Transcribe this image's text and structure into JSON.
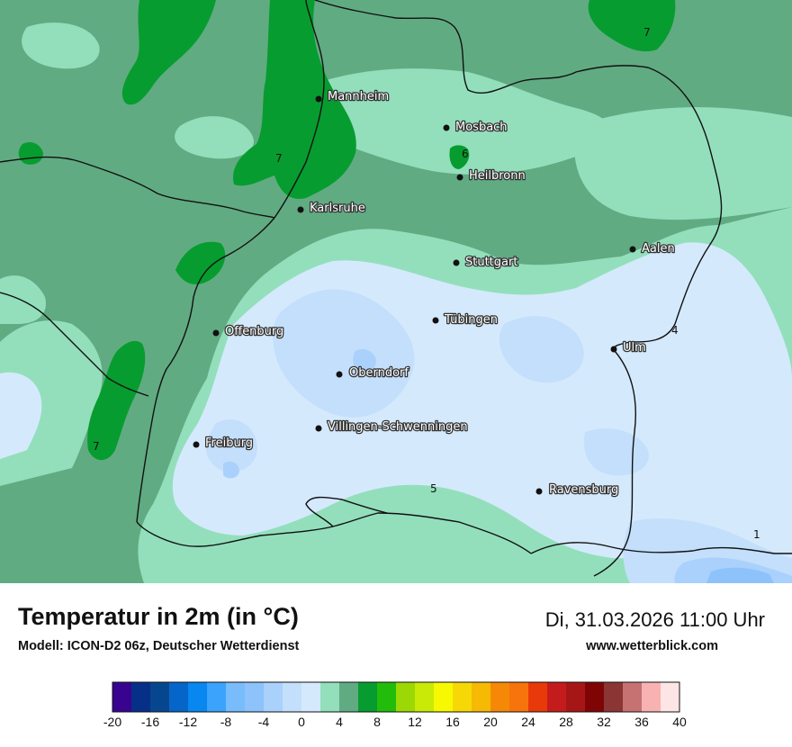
{
  "map": {
    "base_color": "#61ab82",
    "colors": {
      "t0": "#d5e9fd",
      "t1": "#c3dffb",
      "t2": "#a9d1fb",
      "t3": "#8ec2fb",
      "t4": "#93dfbc",
      "t5": "#61ab82",
      "t6": "#079c2f"
    },
    "cities": [
      {
        "id": "mannheim",
        "name": "Mannheim"
      },
      {
        "id": "mosbach",
        "name": "Mosbach"
      },
      {
        "id": "heilbronn",
        "name": "Heilbronn"
      },
      {
        "id": "karlsruhe",
        "name": "Karlsruhe"
      },
      {
        "id": "stuttgart",
        "name": "Stuttgart"
      },
      {
        "id": "aalen",
        "name": "Aalen"
      },
      {
        "id": "tuebingen",
        "name": "Tübingen"
      },
      {
        "id": "offenburg",
        "name": "Offenburg"
      },
      {
        "id": "ulm",
        "name": "Ulm"
      },
      {
        "id": "oberndorf",
        "name": "Oberndorf"
      },
      {
        "id": "villingen",
        "name": "Villingen-Schwenningen"
      },
      {
        "id": "freiburg",
        "name": "Freiburg"
      },
      {
        "id": "ravensburg",
        "name": "Ravensburg"
      }
    ],
    "contour_labels": [
      "7",
      "6",
      "7",
      "4",
      "7",
      "5",
      "1"
    ]
  },
  "footer": {
    "title": "Temperatur in 2m (in °C)",
    "subtitle": "Modell: ICON-D2 06z, Deutscher Wetterdienst",
    "datetime": "Di, 31.03.2026 11:00 Uhr",
    "site": "www.wetterblick.com"
  },
  "legend": {
    "min": -20,
    "max": 40,
    "step": 2,
    "ticks": [
      -20,
      -16,
      -12,
      -8,
      -4,
      0,
      4,
      8,
      12,
      16,
      20,
      24,
      28,
      32,
      36,
      40
    ],
    "colors": [
      "#38048f",
      "#062f87",
      "#06468f",
      "#0565c8",
      "#0787ef",
      "#3ba3fb",
      "#79bcfb",
      "#8ec2fb",
      "#a9d1fb",
      "#c3dffb",
      "#d5e9fd",
      "#93dfbc",
      "#61ab82",
      "#079c2f",
      "#23bc0b",
      "#9bd805",
      "#c9ea06",
      "#f6f901",
      "#f6d807",
      "#f6b904",
      "#f68807",
      "#f6740b",
      "#e8390b",
      "#c41c1c",
      "#a71616",
      "#7f0505",
      "#8c3535",
      "#c67272",
      "#f9b2b2",
      "#fde5e5"
    ]
  }
}
